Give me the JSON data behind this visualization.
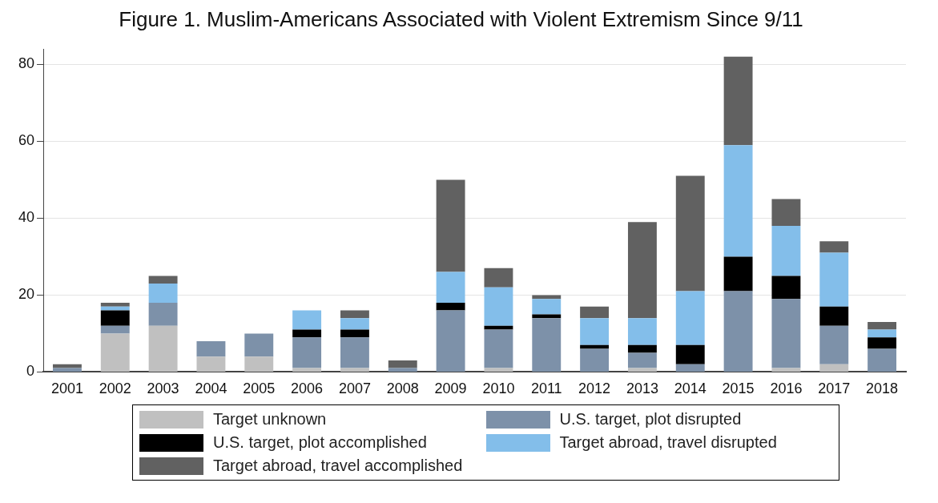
{
  "chart_data": {
    "type": "bar",
    "title": "Figure 1. Muslim-Americans Associated with Violent Extremism Since 9/11",
    "categories": [
      "2001",
      "2002",
      "2003",
      "2004",
      "2005",
      "2006",
      "2007",
      "2008",
      "2009",
      "2010",
      "2011",
      "2012",
      "2013",
      "2014",
      "2015",
      "2016",
      "2017",
      "2018"
    ],
    "stacked": true,
    "series": [
      {
        "name": "Target unknown",
        "color": "#c0c0c0",
        "values": [
          0,
          10,
          12,
          4,
          4,
          1,
          1,
          0,
          0,
          1,
          0,
          0,
          1,
          0,
          0,
          1,
          2,
          0
        ]
      },
      {
        "name": "U.S. target, plot disrupted",
        "color": "#7d91a9",
        "values": [
          1,
          2,
          6,
          4,
          6,
          8,
          8,
          1,
          16,
          10,
          14,
          6,
          4,
          2,
          21,
          18,
          10,
          6
        ]
      },
      {
        "name": "U.S. target, plot accomplished",
        "color": "#000000",
        "values": [
          0,
          4,
          0,
          0,
          0,
          2,
          2,
          0,
          2,
          1,
          1,
          1,
          2,
          5,
          9,
          6,
          5,
          3
        ]
      },
      {
        "name": "Target abroad, travel disrupted",
        "color": "#83beea",
        "values": [
          0,
          1,
          5,
          0,
          0,
          5,
          3,
          0,
          8,
          10,
          4,
          7,
          7,
          14,
          29,
          13,
          14,
          2
        ]
      },
      {
        "name": "Target abroad, travel accomplished",
        "color": "#616161",
        "values": [
          1,
          1,
          2,
          0,
          0,
          0,
          2,
          2,
          24,
          5,
          1,
          3,
          25,
          30,
          23,
          7,
          3,
          2
        ]
      }
    ],
    "ylim": [
      0,
      84
    ],
    "yticks": [
      0,
      20,
      40,
      60,
      80
    ],
    "grid": "y",
    "legend": "bottom"
  }
}
